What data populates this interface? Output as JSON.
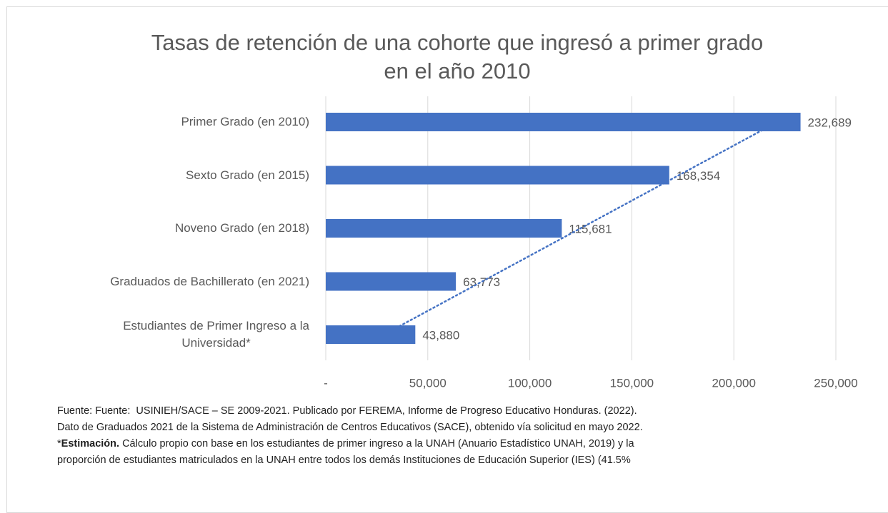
{
  "chart_data": {
    "type": "bar",
    "orientation": "horizontal",
    "title": "Tasas de retención de una cohorte que ingresó a primer grado\nen el año 2010",
    "categories": [
      "Primer Grado (en 2010)",
      "Sexto Grado (en 2015)",
      "Noveno Grado (en 2018)",
      "Graduados de Bachillerato (en 2021)",
      "Estudiantes de Primer Ingreso a la\nUniversidad*"
    ],
    "values": [
      232689,
      168354,
      115681,
      63773,
      43880
    ],
    "value_labels": [
      "232,689",
      "168,354",
      "115,681",
      "63,773",
      "43,880"
    ],
    "color": "#4472c4",
    "xlim": [
      0,
      250000
    ],
    "xticks": [
      {
        "value": 0,
        "label": "-"
      },
      {
        "value": 50000,
        "label": "50,000"
      },
      {
        "value": 100000,
        "label": "100,000"
      },
      {
        "value": 150000,
        "label": "150,000"
      },
      {
        "value": 200000,
        "label": "200,000"
      },
      {
        "value": 250000,
        "label": "250,000"
      }
    ],
    "grid": true,
    "trendline": {
      "type": "linear",
      "color": "#4472c4",
      "style": "dotted"
    }
  },
  "notes": [
    [
      "Fuente: Fuente:  USINIEH/SACE – SE 2009-2021. Publicado por FEREMA, Informe de Progreso Educativo Honduras. (2022)."
    ],
    [
      "Dato de Graduados 2021 de la Sistema de Administración de Centros Educativos (SACE), obtenido vía solicitud en mayo 2022."
    ],
    [
      "*",
      "Estimación.",
      " Cálculo propio con base en los estudiantes de primer ingreso a la UNAH (Anuario Estadístico UNAH, 2019) y la"
    ],
    [
      "proporción de estudiantes matriculados en la UNAH entre todos los demás Instituciones de Educación Superior (IES) (41.5%"
    ]
  ]
}
